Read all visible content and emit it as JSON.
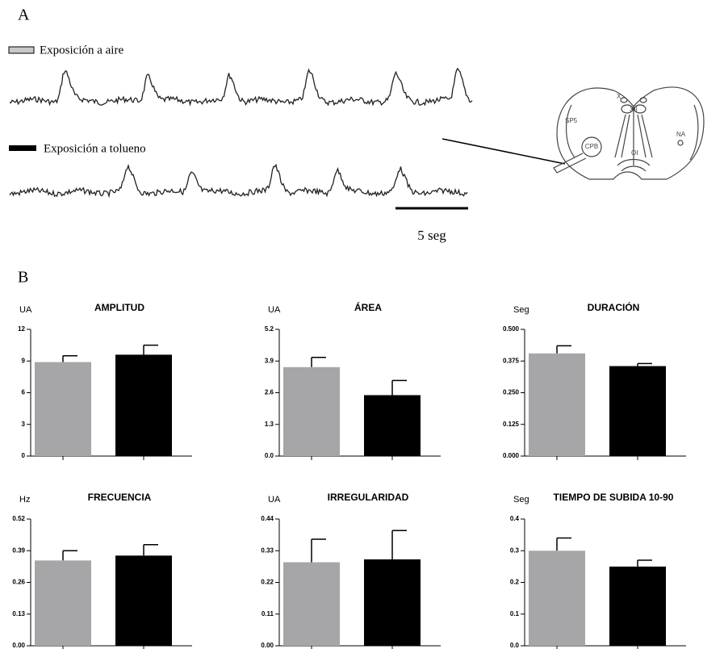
{
  "panel_a": {
    "label": "A",
    "legend": [
      "Exposición a aire",
      "Exposición a tolueno"
    ],
    "scale_bar": "5 seg",
    "diagram_labels": [
      "X",
      "XII",
      "SP5",
      "CPB",
      "NA",
      "OI"
    ]
  },
  "panel_b": {
    "label": "B"
  },
  "chart_data": [
    {
      "type": "bar",
      "title": "AMPLITUD",
      "y_label": "UA",
      "categories": [
        null,
        null
      ],
      "values": [
        8.9,
        9.6
      ],
      "errors": [
        0.6,
        0.9
      ],
      "colors": [
        "#a6a6a8",
        "#000000"
      ],
      "ylim": [
        0,
        12
      ],
      "yticks": [
        0,
        3,
        6,
        9,
        12
      ]
    },
    {
      "type": "bar",
      "title": "ÁREA",
      "y_label": "UA",
      "categories": [
        null,
        null
      ],
      "values": [
        3.65,
        2.5
      ],
      "errors": [
        0.4,
        0.6
      ],
      "colors": [
        "#a6a6a8",
        "#000000"
      ],
      "ylim": [
        0,
        5.2
      ],
      "yticks": [
        {
          "value": 0,
          "label": "0.0"
        },
        1.3,
        2.6,
        3.9,
        5.2
      ]
    },
    {
      "type": "bar",
      "title": "DURACIÓN",
      "y_label": "Seg",
      "categories": [
        null,
        null
      ],
      "values": [
        0.405,
        0.355
      ],
      "errors": [
        0.03,
        0.01
      ],
      "colors": [
        "#a6a6a8",
        "#000000"
      ],
      "ylim": [
        0,
        0.5
      ],
      "yticks": [
        {
          "value": 0,
          "label": "0.000"
        },
        0.125,
        {
          "value": 0.25,
          "label": "0.250"
        },
        0.375,
        {
          "value": 0.5,
          "label": "0.500"
        }
      ]
    },
    {
      "type": "bar",
      "title": "FRECUENCIA",
      "y_label": "Hz",
      "categories": [
        null,
        null
      ],
      "values": [
        0.35,
        0.37
      ],
      "errors": [
        0.04,
        0.045
      ],
      "colors": [
        "#a6a6a8",
        "#000000"
      ],
      "ylim": [
        0,
        0.52
      ],
      "yticks": [
        {
          "value": 0,
          "label": "0.00"
        },
        0.13,
        0.26,
        0.39,
        0.52
      ]
    },
    {
      "type": "bar",
      "title": "IRREGULARIDAD",
      "y_label": "UA",
      "categories": [
        null,
        null
      ],
      "values": [
        0.29,
        0.3
      ],
      "errors": [
        0.08,
        0.1
      ],
      "colors": [
        "#a6a6a8",
        "#000000"
      ],
      "ylim": [
        0,
        0.44
      ],
      "yticks": [
        {
          "value": 0,
          "label": "0.00"
        },
        0.11,
        0.22,
        0.33,
        0.44
      ]
    },
    {
      "type": "bar",
      "title": "TIEMPO DE SUBIDA 10-90",
      "y_label": "Seg",
      "categories": [
        null,
        null
      ],
      "values": [
        0.3,
        0.25
      ],
      "errors": [
        0.04,
        0.02
      ],
      "colors": [
        "#a6a6a8",
        "#000000"
      ],
      "ylim": [
        0,
        0.4
      ],
      "yticks": [
        {
          "value": 0,
          "label": "0.0"
        },
        0.1,
        0.2,
        0.3,
        0.4
      ]
    }
  ]
}
